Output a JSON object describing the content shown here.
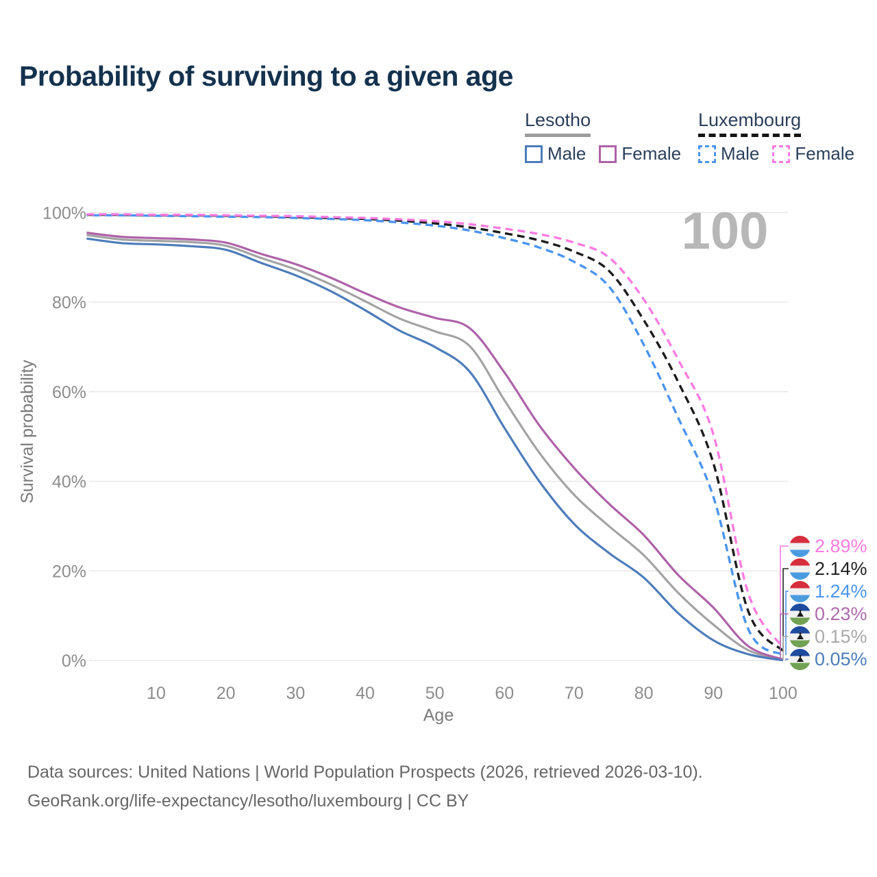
{
  "title": "Probability of surviving to a given age",
  "watermark_age_label": "100",
  "colors": {
    "title_text": "#14324e",
    "tick_text": "#8c8c8c",
    "axis_label_text": "#7a7a7a",
    "gridline": "#e7e7e7",
    "watermark": "#b7b7b7",
    "lesotho_male": "#4d7cba",
    "lesotho_female": "#ae62a8",
    "lesotho_both": "#a3a3a3",
    "luxembourg_male": "#4b94ee",
    "luxembourg_female": "#fb7ce0",
    "luxembourg_both": "#1c1c1c"
  },
  "legend": {
    "groups": [
      {
        "name": "Lesotho",
        "items": [
          {
            "label": "Male",
            "color_key": "lesotho_male",
            "dashed": false
          },
          {
            "label": "Female",
            "color_key": "lesotho_female",
            "dashed": false
          }
        ]
      },
      {
        "name": "Luxembourg",
        "items": [
          {
            "label": "Male",
            "color_key": "luxembourg_male",
            "dashed": true
          },
          {
            "label": "Female",
            "color_key": "luxembourg_female",
            "dashed": true
          }
        ]
      }
    ]
  },
  "chart_data": {
    "type": "line",
    "title": "Probability of surviving to a given age",
    "xlabel": "Age",
    "ylabel": "Survival probability",
    "xlim": [
      0,
      100
    ],
    "ylim": [
      0,
      100
    ],
    "grid": "horizontal",
    "legend_position": "top-right",
    "x_ticks": [
      10,
      20,
      30,
      40,
      50,
      60,
      70,
      80,
      90,
      100
    ],
    "y_ticks": [
      {
        "value": 0,
        "label": "0%"
      },
      {
        "value": 20,
        "label": "20%"
      },
      {
        "value": 40,
        "label": "40%"
      },
      {
        "value": 60,
        "label": "60%"
      },
      {
        "value": 80,
        "label": "80%"
      },
      {
        "value": 100,
        "label": "100%"
      }
    ],
    "x": [
      0,
      5,
      10,
      15,
      20,
      25,
      30,
      35,
      40,
      45,
      50,
      55,
      60,
      65,
      70,
      75,
      80,
      85,
      90,
      95,
      100
    ],
    "series": [
      {
        "id": "lesotho-both",
        "name": "Lesotho — Both sexes",
        "color_key": "lesotho_both",
        "dashed": false,
        "end_label": "0.15%",
        "values": [
          95.0,
          94.0,
          93.7,
          93.4,
          92.6,
          89.9,
          87.3,
          84.0,
          80.2,
          76.3,
          73.5,
          70.2,
          58.1,
          46.4,
          37.0,
          30.0,
          23.5,
          15.0,
          8.0,
          2.3,
          0.15
        ]
      },
      {
        "id": "lesotho-female",
        "name": "Lesotho — Female",
        "color_key": "lesotho_female",
        "dashed": false,
        "end_label": "0.23%",
        "values": [
          95.5,
          94.6,
          94.3,
          94.0,
          93.3,
          90.8,
          88.5,
          85.5,
          82.0,
          78.8,
          76.5,
          74.2,
          64.3,
          52.5,
          43.0,
          35.0,
          28.0,
          19.0,
          11.8,
          3.2,
          0.23
        ]
      },
      {
        "id": "lesotho-male",
        "name": "Lesotho — Male",
        "color_key": "lesotho_male",
        "dashed": false,
        "end_label": "0.05%",
        "values": [
          94.2,
          93.2,
          92.9,
          92.5,
          91.7,
          88.8,
          86.0,
          82.5,
          78.2,
          73.6,
          70.0,
          64.5,
          51.9,
          40.0,
          30.5,
          24.0,
          18.5,
          10.5,
          4.5,
          1.4,
          0.05
        ]
      },
      {
        "id": "luxembourg-both",
        "name": "Luxembourg — Both sexes",
        "color_key": "luxembourg_both",
        "dashed": true,
        "end_label": "2.14%",
        "values": [
          99.5,
          99.5,
          99.4,
          99.4,
          99.3,
          99.2,
          99.0,
          98.8,
          98.6,
          98.2,
          97.6,
          96.7,
          95.4,
          93.8,
          91.3,
          87.0,
          76.0,
          62.0,
          44.0,
          11.0,
          2.14
        ]
      },
      {
        "id": "luxembourg-male",
        "name": "Luxembourg — Male",
        "color_key": "luxembourg_male",
        "dashed": true,
        "end_label": "1.24%",
        "values": [
          99.4,
          99.4,
          99.3,
          99.2,
          99.1,
          99.0,
          98.8,
          98.6,
          98.3,
          97.8,
          97.1,
          96.0,
          94.3,
          92.2,
          89.0,
          83.5,
          70.5,
          54.0,
          36.5,
          7.0,
          1.24
        ]
      },
      {
        "id": "luxembourg-female",
        "name": "Luxembourg — Female",
        "color_key": "luxembourg_female",
        "dashed": true,
        "end_label": "2.89%",
        "values": [
          99.6,
          99.6,
          99.5,
          99.5,
          99.4,
          99.3,
          99.2,
          99.0,
          98.8,
          98.5,
          98.1,
          97.4,
          96.4,
          95.2,
          93.3,
          90.0,
          80.6,
          67.0,
          50.4,
          15.0,
          2.89
        ]
      }
    ]
  },
  "end_labels": [
    {
      "value": "2.89%",
      "color": "#fb7ce0",
      "flag": "luxembourg",
      "series": "luxembourg-female"
    },
    {
      "value": "2.14%",
      "color": "#222222",
      "flag": "luxembourg",
      "series": "luxembourg-both"
    },
    {
      "value": "1.24%",
      "color": "#4b94ee",
      "flag": "luxembourg",
      "series": "luxembourg-male"
    },
    {
      "value": "0.23%",
      "color": "#b06bac",
      "flag": "lesotho",
      "series": "lesotho-female"
    },
    {
      "value": "0.15%",
      "color": "#a9a9a9",
      "flag": "lesotho",
      "series": "lesotho-both"
    },
    {
      "value": "0.05%",
      "color": "#4d7cba",
      "flag": "lesotho",
      "series": "lesotho-male"
    }
  ],
  "footer": {
    "line1": "Data sources: United Nations | World Population Prospects (2026, retrieved 2026-03-10).",
    "line2": "GeoRank.org/life-expectancy/lesotho/luxembourg | CC BY"
  }
}
